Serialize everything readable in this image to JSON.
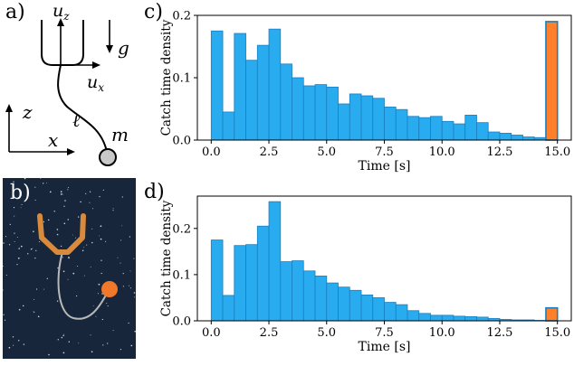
{
  "panels": {
    "a": "a)",
    "b": "b)",
    "c": "c)",
    "d": "d)"
  },
  "diagram": {
    "uz_label": "u",
    "uz_sub": "z",
    "ux_label": "u",
    "ux_sub": "x",
    "g_label": "g",
    "z_label": "z",
    "x_label": "x",
    "ell_label": "ℓ",
    "m_label": "m"
  },
  "colors": {
    "bar_blue": "#29abf0",
    "bar_blue_edge": "#1a7fc0",
    "bar_orange": "#ff7f2a",
    "sim_background": "#17263a",
    "cup_orange": "#d98a3a",
    "ball_orange": "#f0782a",
    "string_gray": "#b8b8b8"
  },
  "chart_data": [
    {
      "id": "c",
      "type": "bar",
      "xlabel": "Time [s]",
      "ylabel": "Catch time density",
      "xlim": [
        -0.6,
        15.6
      ],
      "ylim": [
        0,
        0.2
      ],
      "xticks": [
        "0.0",
        "2.5",
        "5.0",
        "7.5",
        "10.0",
        "12.5",
        "15.0"
      ],
      "xtick_values": [
        0,
        2.5,
        5,
        7.5,
        10,
        12.5,
        15
      ],
      "yticks": [
        "0.0",
        "0.1",
        "0.2"
      ],
      "ytick_values": [
        0,
        0.1,
        0.2
      ],
      "bin_width": 0.5,
      "bin_starts": [
        0,
        0.5,
        1,
        1.5,
        2,
        2.5,
        3,
        3.5,
        4,
        4.5,
        5,
        5.5,
        6,
        6.5,
        7,
        7.5,
        8,
        8.5,
        9,
        9.5,
        10,
        10.5,
        11,
        11.5,
        12,
        12.5,
        13,
        13.5,
        14
      ],
      "values": [
        0.175,
        0.045,
        0.171,
        0.128,
        0.152,
        0.178,
        0.122,
        0.1,
        0.087,
        0.089,
        0.085,
        0.058,
        0.074,
        0.071,
        0.067,
        0.053,
        0.049,
        0.038,
        0.036,
        0.038,
        0.03,
        0.026,
        0.04,
        0.028,
        0.013,
        0.011,
        0.008,
        0.005,
        0.004
      ],
      "overflow_bin": {
        "start": 14.5,
        "value": 0.19
      }
    },
    {
      "id": "d",
      "type": "bar",
      "xlabel": "Time [s]",
      "ylabel": "Catch time density",
      "xlim": [
        -0.6,
        15.6
      ],
      "ylim": [
        0,
        0.27
      ],
      "xticks": [
        "0.0",
        "2.5",
        "5.0",
        "7.5",
        "10.0",
        "12.5",
        "15.0"
      ],
      "xtick_values": [
        0,
        2.5,
        5,
        7.5,
        10,
        12.5,
        15
      ],
      "yticks": [
        "0.0",
        "0.1",
        "0.2"
      ],
      "ytick_values": [
        0,
        0.1,
        0.2
      ],
      "bin_width": 0.5,
      "bin_starts": [
        0,
        0.5,
        1,
        1.5,
        2,
        2.5,
        3,
        3.5,
        4,
        4.5,
        5,
        5.5,
        6,
        6.5,
        7,
        7.5,
        8,
        8.5,
        9,
        9.5,
        10,
        10.5,
        11,
        11.5,
        12,
        12.5,
        13,
        13.5,
        14
      ],
      "values": [
        0.175,
        0.055,
        0.163,
        0.165,
        0.205,
        0.258,
        0.128,
        0.13,
        0.108,
        0.097,
        0.082,
        0.073,
        0.066,
        0.056,
        0.05,
        0.04,
        0.035,
        0.022,
        0.016,
        0.012,
        0.012,
        0.01,
        0.009,
        0.008,
        0.005,
        0.003,
        0.002,
        0.002,
        0.001
      ],
      "overflow_bin": {
        "start": 14.5,
        "value": 0.028
      }
    }
  ]
}
